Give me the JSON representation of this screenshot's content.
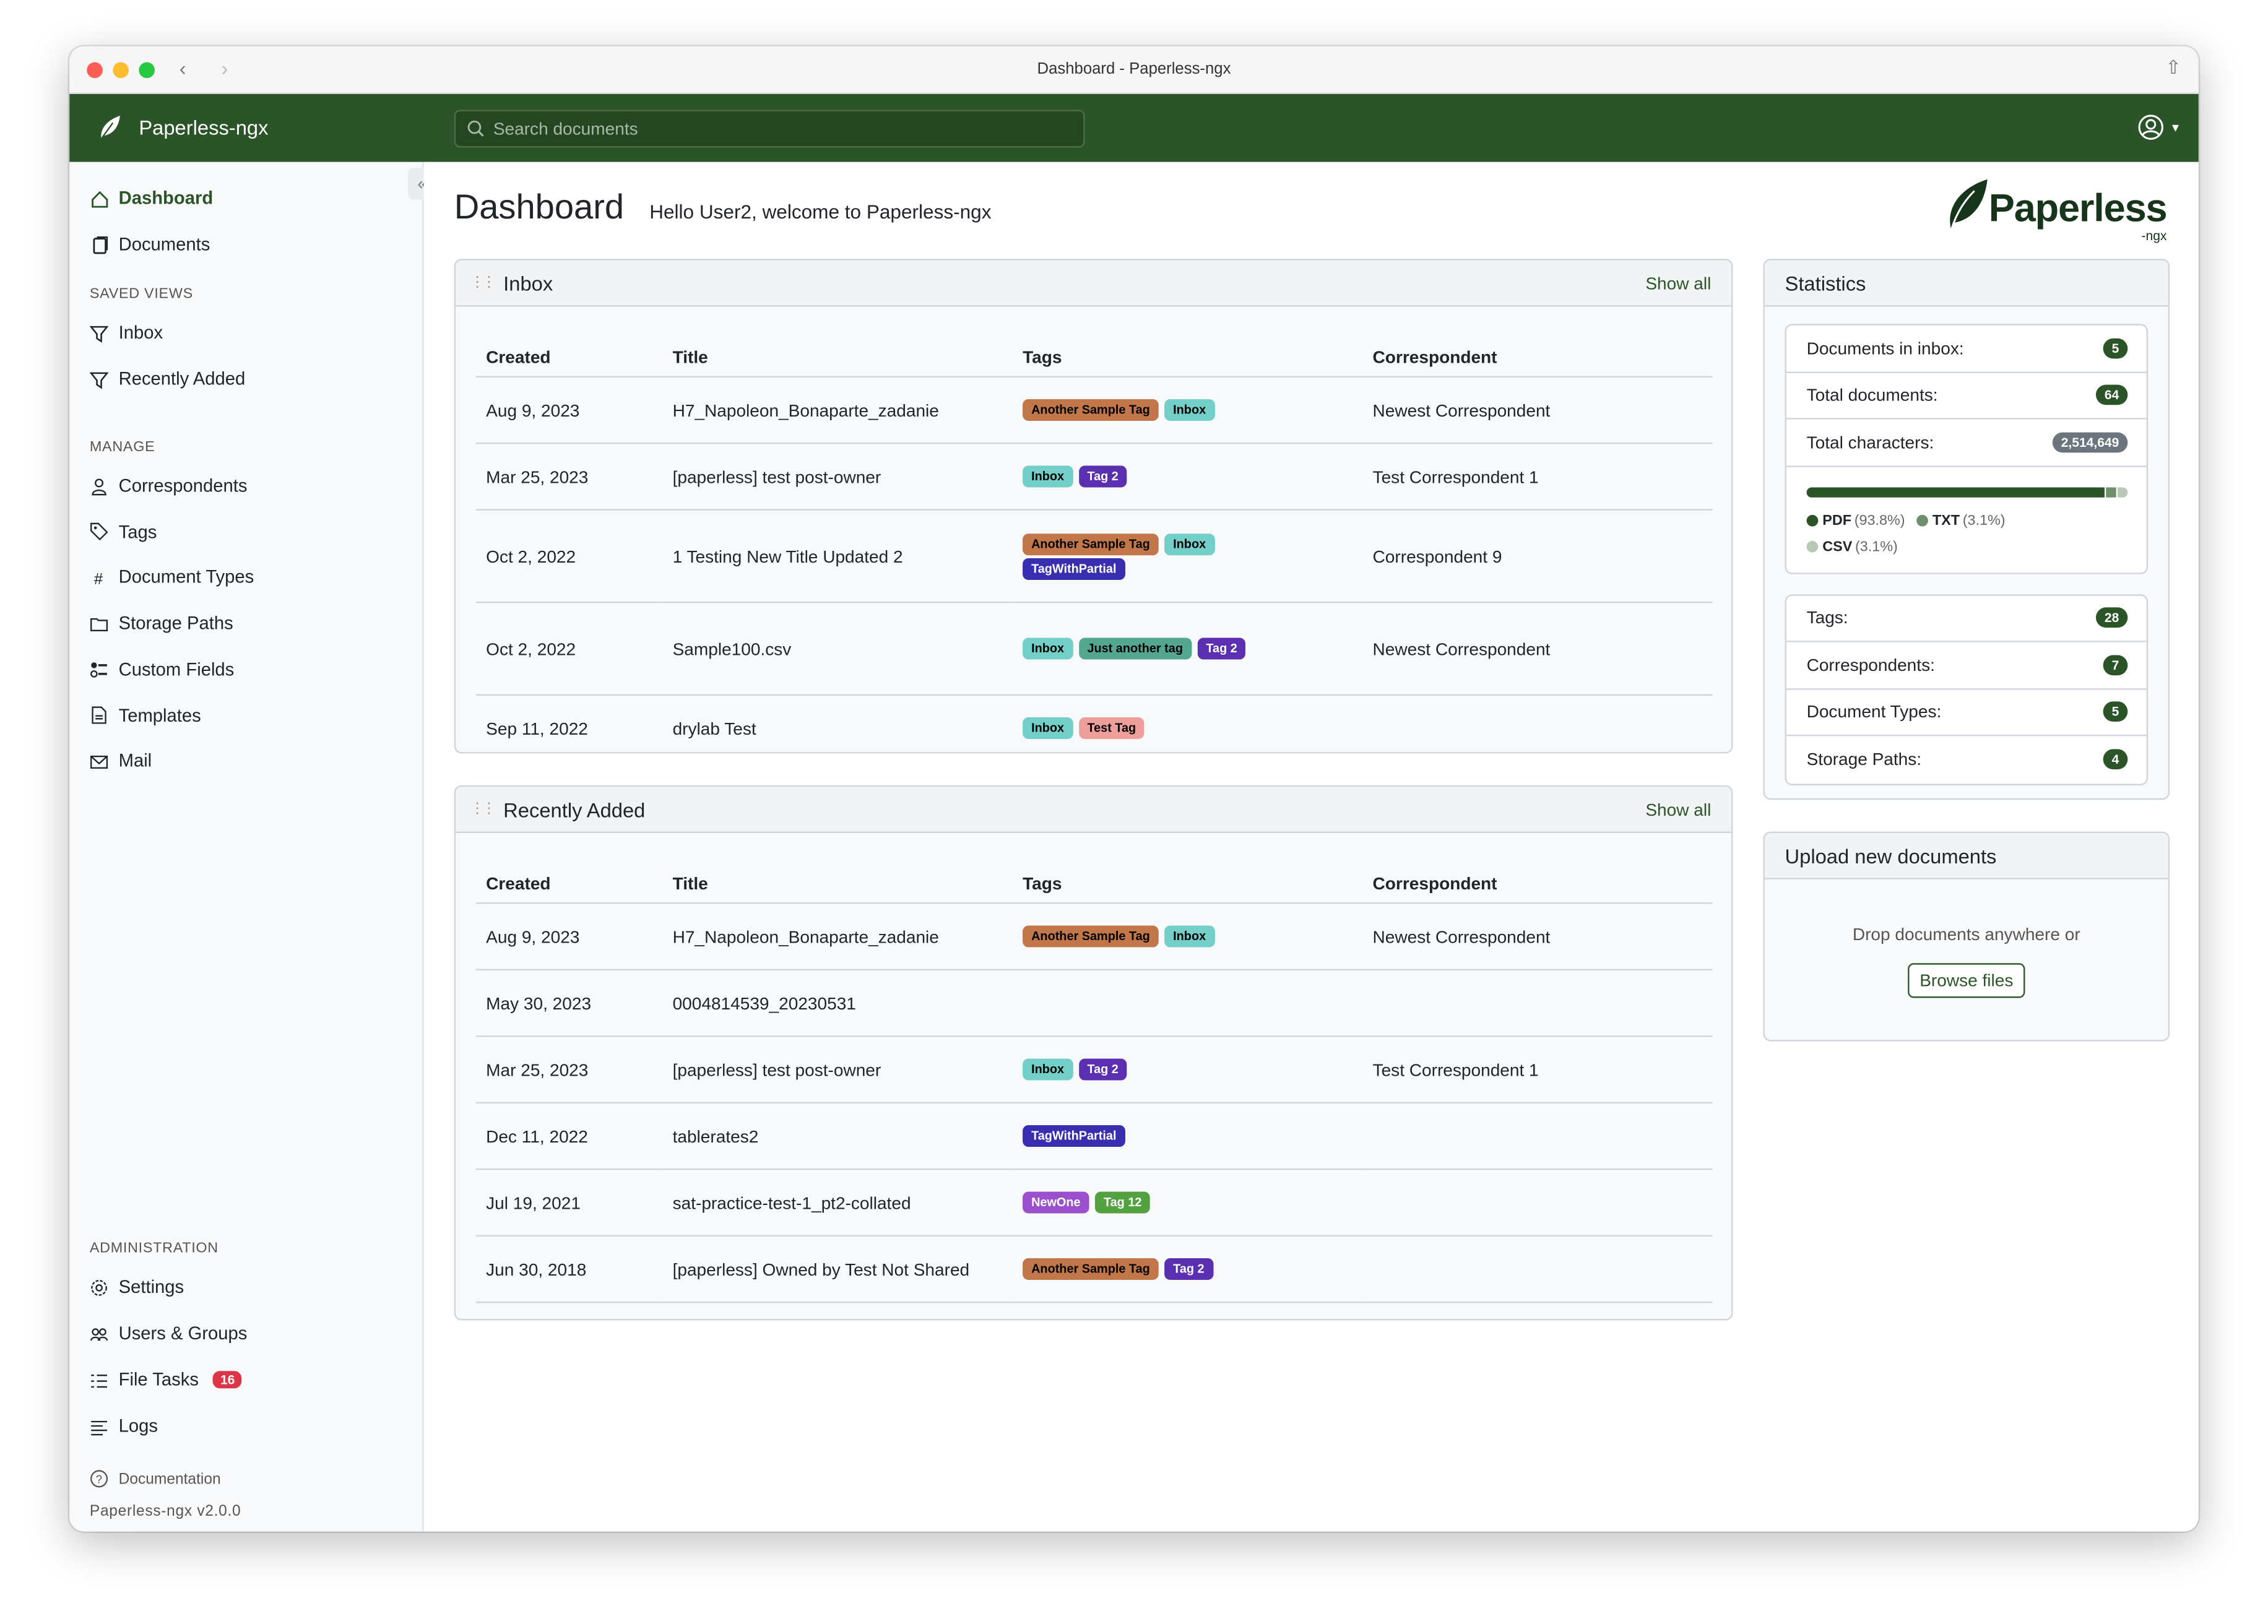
{
  "window": {
    "title": "Dashboard - Paperless-ngx"
  },
  "header": {
    "brand": "Paperless-ngx",
    "search_placeholder": "Search documents"
  },
  "sidebar": {
    "top": [
      {
        "label": "Dashboard",
        "icon": "house-icon",
        "active": true
      },
      {
        "label": "Documents",
        "icon": "files-icon"
      }
    ],
    "saved_views_heading": "SAVED VIEWS",
    "saved_views": [
      {
        "label": "Inbox",
        "icon": "funnel-icon"
      },
      {
        "label": "Recently Added",
        "icon": "funnel-icon"
      }
    ],
    "manage_heading": "MANAGE",
    "manage": [
      {
        "label": "Correspondents",
        "icon": "person-icon"
      },
      {
        "label": "Tags",
        "icon": "tags-icon"
      },
      {
        "label": "Document Types",
        "icon": "hash-icon"
      },
      {
        "label": "Storage Paths",
        "icon": "folder-icon"
      },
      {
        "label": "Custom Fields",
        "icon": "ui-radios-icon"
      },
      {
        "label": "Templates",
        "icon": "file-text-icon"
      },
      {
        "label": "Mail",
        "icon": "envelope-icon"
      }
    ],
    "admin_heading": "ADMINISTRATION",
    "admin": [
      {
        "label": "Settings",
        "icon": "gear-icon"
      },
      {
        "label": "Users & Groups",
        "icon": "people-icon"
      },
      {
        "label": "File Tasks",
        "icon": "list-task-icon",
        "badge": "16"
      },
      {
        "label": "Logs",
        "icon": "text-left-icon"
      }
    ],
    "documentation": "Documentation",
    "version": "Paperless-ngx v2.0.0"
  },
  "page": {
    "title": "Dashboard",
    "welcome": "Hello User2, welcome to Paperless-ngx",
    "logo_text": "Paperless",
    "logo_sub": "-ngx"
  },
  "columns": [
    "Created",
    "Title",
    "Tags",
    "Correspondent"
  ],
  "inbox": {
    "title": "Inbox",
    "show_all": "Show all",
    "rows": [
      {
        "created": "Aug 9, 2023",
        "title": "H7_Napoleon_Bonaparte_zadanie",
        "tags": [
          {
            "label": "Another Sample Tag",
            "bg": "#c2774a",
            "fg": "#000000"
          },
          {
            "label": "Inbox",
            "bg": "#74cfc9",
            "fg": "#000000"
          }
        ],
        "correspondent": "Newest Correspondent"
      },
      {
        "created": "Mar 25, 2023",
        "title": "[paperless] test post-owner",
        "tags": [
          {
            "label": "Inbox",
            "bg": "#74cfc9",
            "fg": "#000000"
          },
          {
            "label": "Tag 2",
            "bg": "#5b30b0",
            "fg": "#ffffff"
          }
        ],
        "correspondent": "Test Correspondent 1"
      },
      {
        "created": "Oct 2, 2022",
        "title": "1 Testing New Title Updated 2",
        "tags": [
          {
            "label": "Another Sample Tag",
            "bg": "#c2774a",
            "fg": "#000000"
          },
          {
            "label": "Inbox",
            "bg": "#74cfc9",
            "fg": "#000000"
          },
          {
            "label": "TagWithPartial",
            "bg": "#3a2eb0",
            "fg": "#ffffff"
          }
        ],
        "correspondent": "Correspondent 9"
      },
      {
        "created": "Oct 2, 2022",
        "title": "Sample100.csv",
        "tags": [
          {
            "label": "Inbox",
            "bg": "#74cfc9",
            "fg": "#000000"
          },
          {
            "label": "Just another tag",
            "bg": "#55a890",
            "fg": "#000000"
          },
          {
            "label": "Tag 2",
            "bg": "#5b30b0",
            "fg": "#ffffff"
          }
        ],
        "correspondent": "Newest Correspondent"
      },
      {
        "created": "Sep 11, 2022",
        "title": "drylab Test",
        "tags": [
          {
            "label": "Inbox",
            "bg": "#74cfc9",
            "fg": "#000000"
          },
          {
            "label": "Test Tag",
            "bg": "#ef9f9b",
            "fg": "#000000"
          }
        ],
        "correspondent": ""
      }
    ]
  },
  "recent": {
    "title": "Recently Added",
    "show_all": "Show all",
    "rows": [
      {
        "created": "Aug 9, 2023",
        "title": "H7_Napoleon_Bonaparte_zadanie",
        "tags": [
          {
            "label": "Another Sample Tag",
            "bg": "#c2774a",
            "fg": "#000000"
          },
          {
            "label": "Inbox",
            "bg": "#74cfc9",
            "fg": "#000000"
          }
        ],
        "correspondent": "Newest Correspondent"
      },
      {
        "created": "May 30, 2023",
        "title": "0004814539_20230531",
        "tags": [],
        "correspondent": ""
      },
      {
        "created": "Mar 25, 2023",
        "title": "[paperless] test post-owner",
        "tags": [
          {
            "label": "Inbox",
            "bg": "#74cfc9",
            "fg": "#000000"
          },
          {
            "label": "Tag 2",
            "bg": "#5b30b0",
            "fg": "#ffffff"
          }
        ],
        "correspondent": "Test Correspondent 1"
      },
      {
        "created": "Dec 11, 2022",
        "title": "tablerates2",
        "tags": [
          {
            "label": "TagWithPartial",
            "bg": "#3a2eb0",
            "fg": "#ffffff"
          }
        ],
        "correspondent": ""
      },
      {
        "created": "Jul 19, 2021",
        "title": "sat-practice-test-1_pt2-collated",
        "tags": [
          {
            "label": "NewOne",
            "bg": "#9a4fcc",
            "fg": "#ffffff"
          },
          {
            "label": "Tag 12",
            "bg": "#52a33f",
            "fg": "#ffffff"
          }
        ],
        "correspondent": ""
      },
      {
        "created": "Jun 30, 2018",
        "title": "[paperless] Owned by Test Not Shared",
        "tags": [
          {
            "label": "Another Sample Tag",
            "bg": "#c2774a",
            "fg": "#000000"
          },
          {
            "label": "Tag 2",
            "bg": "#5b30b0",
            "fg": "#ffffff"
          }
        ],
        "correspondent": ""
      }
    ]
  },
  "statistics": {
    "title": "Statistics",
    "top": [
      {
        "label": "Documents in inbox:",
        "value": "5"
      },
      {
        "label": "Total documents:",
        "value": "64"
      },
      {
        "label": "Total characters:",
        "value": "2,514,649",
        "grey": true
      }
    ],
    "file_types": [
      {
        "label": "PDF",
        "pct": "(93.8%)",
        "value": 93.8,
        "color": "#2b5428"
      },
      {
        "label": "TXT",
        "pct": "(3.1%)",
        "value": 3.1,
        "color": "#6f8f6c"
      },
      {
        "label": "CSV",
        "pct": "(3.1%)",
        "value": 3.1,
        "color": "#b8c9b6"
      }
    ],
    "bottom": [
      {
        "label": "Tags:",
        "value": "28"
      },
      {
        "label": "Correspondents:",
        "value": "7"
      },
      {
        "label": "Document Types:",
        "value": "5"
      },
      {
        "label": "Storage Paths:",
        "value": "4"
      }
    ]
  },
  "upload": {
    "title": "Upload new documents",
    "hint": "Drop documents anywhere or",
    "browse": "Browse files"
  },
  "colors": {
    "brand": "#2b5428",
    "danger": "#dc3545"
  }
}
